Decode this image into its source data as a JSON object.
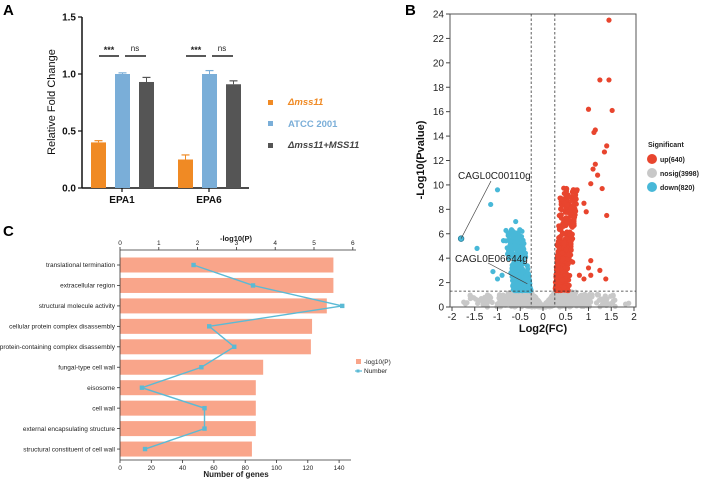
{
  "panels": {
    "a": "A",
    "b": "B",
    "c": "C"
  },
  "chart_data": [
    {
      "id": "A",
      "type": "bar",
      "title": "",
      "xlabel": "",
      "ylabel": "Relative Fold Change",
      "ylim": [
        0,
        1.5
      ],
      "yticks": [
        "0.0",
        "0.5",
        "1.0",
        "1.5"
      ],
      "ytick_values": [
        0,
        0.5,
        1.0,
        1.5
      ],
      "categories": [
        "EPA1",
        "EPA6"
      ],
      "series": [
        {
          "name": "Δmss11",
          "color": "#f08a24",
          "values": [
            0.4,
            0.25
          ],
          "errors": [
            0.015,
            0.04
          ]
        },
        {
          "name": "ATCC 2001",
          "color": "#7aaed8",
          "values": [
            1.0,
            1.0
          ],
          "errors": [
            0.01,
            0.03
          ]
        },
        {
          "name": "Δmss11+MSS11",
          "color": "#555555",
          "values": [
            0.93,
            0.91
          ],
          "errors": [
            0.04,
            0.03
          ]
        }
      ],
      "significance": [
        {
          "category": "EPA1",
          "pairs": [
            [
              "Δmss11",
              "ATCC 2001",
              "***"
            ],
            [
              "ATCC 2001",
              "Δmss11+MSS11",
              "ns"
            ]
          ]
        },
        {
          "category": "EPA6",
          "pairs": [
            [
              "Δmss11",
              "ATCC 2001",
              "***"
            ],
            [
              "ATCC 2001",
              "Δmss11+MSS11",
              "ns"
            ]
          ]
        }
      ],
      "legend": {
        "placement": "right",
        "entries": [
          "Δmss11",
          "ATCC 2001",
          "Δmss11+MSS11"
        ],
        "colors": [
          "#f08a24",
          "#7aaed8",
          "#555555"
        ],
        "italic": [
          true,
          false,
          true
        ]
      }
    },
    {
      "id": "B",
      "type": "scatter",
      "title": "",
      "xlabel": "Log2(FC)",
      "ylabel": "-Log10(Pvalue)",
      "xlim": [
        -2,
        2
      ],
      "ylim": [
        0,
        24
      ],
      "xticks": [
        "-2",
        "-1.5",
        "-1",
        "-0.5",
        "0",
        "0.5",
        "1",
        "1.5",
        "2"
      ],
      "xtick_values": [
        -2,
        -1.5,
        -1,
        -0.5,
        0,
        0.5,
        1,
        1.5,
        2
      ],
      "yticks": [
        "0",
        "2",
        "4",
        "6",
        "8",
        "10",
        "12",
        "14",
        "16",
        "18",
        "20",
        "22",
        "24"
      ],
      "ytick_values": [
        0,
        2,
        4,
        6,
        8,
        10,
        12,
        14,
        16,
        18,
        20,
        22,
        24
      ],
      "thresholds": {
        "log2fc": [
          -0.26,
          0.26
        ],
        "neglog10p": 1.3
      },
      "legend": {
        "title": "Significant",
        "placement": "right",
        "entries": [
          {
            "label": "up(640)",
            "color": "#e8452e"
          },
          {
            "label": "nosig(3998)",
            "color": "#c8c8c8"
          },
          {
            "label": "down(820)",
            "color": "#48b8d8"
          }
        ]
      },
      "groups": {
        "up": {
          "count": 640,
          "color": "#e8452e"
        },
        "nosig": {
          "count": 3998,
          "color": "#c8c8c8"
        },
        "down": {
          "count": 820,
          "color": "#48b8d8"
        }
      },
      "outliers_up": [
        [
          1.45,
          23.5
        ],
        [
          1.25,
          18.6
        ],
        [
          1.45,
          18.6
        ],
        [
          1.0,
          16.2
        ],
        [
          1.52,
          16.1
        ],
        [
          1.15,
          14.5
        ],
        [
          1.12,
          14.3
        ],
        [
          1.4,
          13.2
        ],
        [
          1.35,
          12.7
        ],
        [
          1.15,
          11.7
        ],
        [
          1.1,
          11.3
        ],
        [
          1.2,
          10.8
        ],
        [
          1.05,
          10.1
        ],
        [
          1.3,
          9.7
        ],
        [
          1.4,
          7.5
        ],
        [
          0.75,
          9.6
        ],
        [
          0.72,
          8.9
        ],
        [
          0.9,
          8.5
        ],
        [
          0.95,
          7.8
        ],
        [
          1.05,
          3.8
        ],
        [
          1.0,
          3.2
        ],
        [
          1.25,
          3.0
        ],
        [
          1.38,
          2.3
        ],
        [
          1.05,
          2.6
        ],
        [
          0.8,
          2.6
        ],
        [
          0.9,
          2.3
        ]
      ],
      "outliers_down": [
        [
          -1.0,
          9.6
        ],
        [
          -1.15,
          8.4
        ],
        [
          -0.6,
          7.0
        ],
        [
          -1.45,
          4.8
        ],
        [
          -1.1,
          2.9
        ],
        [
          -1.0,
          2.3
        ],
        [
          -0.9,
          2.6
        ]
      ],
      "annotations": [
        {
          "label": "CAGL0C00110g",
          "x": -1.8,
          "y": 5.6
        },
        {
          "label": "CAGL0E06644g",
          "x": -0.3,
          "y": 1.9
        }
      ]
    },
    {
      "id": "C",
      "type": "bar",
      "orientation": "horizontal",
      "title": "",
      "top_axis_label": "-log10(P)",
      "xlabel": "Number of genes",
      "top_xlim": [
        0,
        6
      ],
      "top_xticks": [
        "0",
        "1",
        "2",
        "3",
        "4",
        "5",
        "6"
      ],
      "xlim": [
        0,
        148
      ],
      "xticks": [
        "0",
        "20",
        "40",
        "60",
        "80",
        "100",
        "120",
        "140"
      ],
      "xtick_values": [
        0,
        20,
        40,
        60,
        80,
        100,
        120,
        140
      ],
      "categories": [
        "translational termination",
        "extracellular region",
        "structural molecule activity",
        "cellular protein complex disassembly",
        "protein-containing complex disassembly",
        "fungal-type cell wall",
        "eisosome",
        "cell wall",
        "external encapsulating structure",
        "structural constituent of cell wall"
      ],
      "series": [
        {
          "name": "-log10(P)",
          "type": "bar",
          "color": "#f9a58a",
          "values": [
            5.5,
            5.5,
            5.33,
            4.95,
            4.92,
            3.69,
            3.5,
            3.5,
            3.5,
            3.4
          ]
        },
        {
          "name": "Number",
          "type": "line",
          "color": "#5bbad5",
          "values": [
            47,
            85,
            142,
            57,
            73,
            52,
            14,
            54,
            54,
            16
          ]
        }
      ],
      "legend": {
        "placement": "right",
        "entries": [
          "-log10(P)",
          "Number"
        ]
      }
    }
  ]
}
